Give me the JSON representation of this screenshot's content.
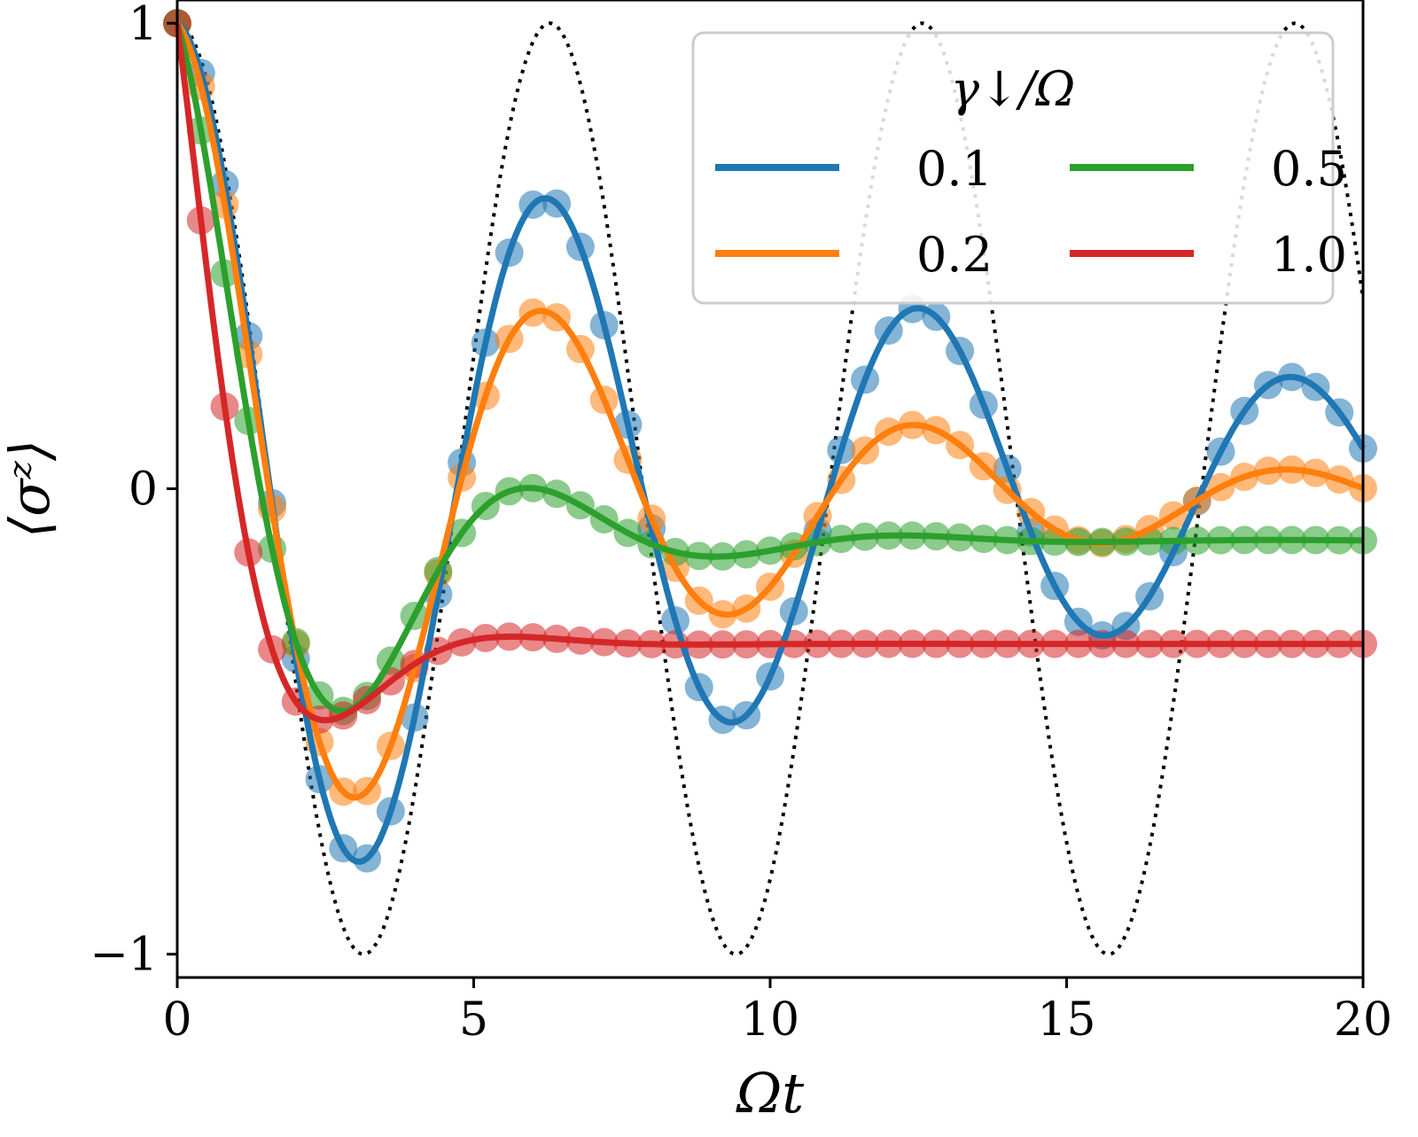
{
  "chart_data": {
    "type": "line",
    "xlabel": "Ωt",
    "ylabel": "⟨σᶻ⟩",
    "xlim": [
      0,
      20
    ],
    "ylim": [
      -1.05,
      1.05
    ],
    "x_ticks": [
      0,
      5,
      10,
      15,
      20
    ],
    "x_tick_labels": [
      "0",
      "5",
      "10",
      "15",
      "20"
    ],
    "y_ticks": [
      -1,
      0,
      1
    ],
    "y_tick_labels": [
      "−1",
      "0",
      "1"
    ],
    "grid": false,
    "legend": {
      "title": "γ↓/Ω",
      "placement": "top-right",
      "columns": 2
    },
    "reference": {
      "style": "dotted",
      "color": "#000000",
      "description": "cos(Ωt)",
      "omega": 1.0
    },
    "marker_samples_x": [
      0,
      0.4,
      0.8,
      1.2,
      1.6,
      2.0,
      2.4,
      2.8,
      3.2,
      3.6,
      4.0,
      4.4,
      4.8,
      5.2,
      5.6,
      6.0,
      6.4,
      6.8,
      7.2,
      7.6,
      8.0,
      8.4,
      8.8,
      9.2,
      9.6,
      10.0,
      10.4,
      10.8,
      11.2,
      11.6,
      12.0,
      12.4,
      12.8,
      13.2,
      13.6,
      14.0,
      14.4,
      14.8,
      15.2,
      15.6,
      16.0,
      16.4,
      16.8,
      17.2,
      17.6,
      18.0,
      18.4,
      18.8,
      19.2,
      19.6,
      20.0
    ],
    "series": [
      {
        "name": "0.1",
        "color": "#1f77b4",
        "gamma": 0.1
      },
      {
        "name": "0.2",
        "color": "#ff7f0e",
        "gamma": 0.2
      },
      {
        "name": "0.5",
        "color": "#2ca02c",
        "gamma": 0.5
      },
      {
        "name": "1.0",
        "color": "#d62728",
        "gamma": 1.0
      }
    ]
  }
}
